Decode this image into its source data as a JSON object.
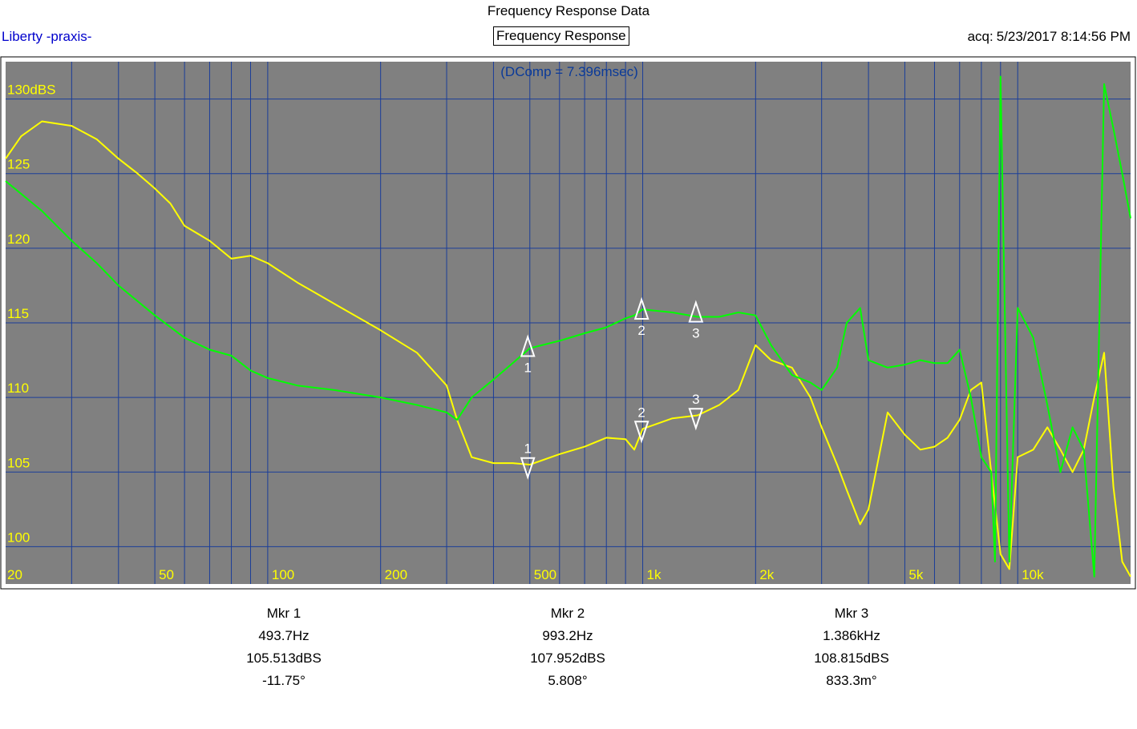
{
  "header": {
    "title": "Frequency Response Data",
    "app_name": "Liberty -praxis-",
    "chart_label": "Frequency Response",
    "acq_label": "acq:",
    "acq_value": "5/23/2017 8:14:56 PM"
  },
  "chart_data": {
    "type": "line",
    "title": "Frequency Response",
    "annotation": "(DComp = 7.396msec)",
    "x_scale": "log",
    "xlim": [
      20,
      20000
    ],
    "x_ticks": [
      {
        "value": 20,
        "label": "20"
      },
      {
        "value": 50,
        "label": "50"
      },
      {
        "value": 100,
        "label": "100"
      },
      {
        "value": 200,
        "label": "200"
      },
      {
        "value": 500,
        "label": "500"
      },
      {
        "value": 1000,
        "label": "1k"
      },
      {
        "value": 2000,
        "label": "2k"
      },
      {
        "value": 5000,
        "label": "5k"
      },
      {
        "value": 10000,
        "label": "10k"
      }
    ],
    "ylim": [
      97.5,
      132.5
    ],
    "y_ticks": [
      {
        "value": 130,
        "label": "130dBS"
      },
      {
        "value": 125,
        "label": "125"
      },
      {
        "value": 120,
        "label": "120"
      },
      {
        "value": 115,
        "label": "115"
      },
      {
        "value": 110,
        "label": "110"
      },
      {
        "value": 105,
        "label": "105"
      },
      {
        "value": 100,
        "label": "100"
      }
    ],
    "grid": true,
    "colors": {
      "background": "#808080",
      "grid": "#1a3d99",
      "magnitude": "#ffff00",
      "phase": "#00ff00",
      "ticks": "#ffff00",
      "annotation": "#0a3a99",
      "marker": "#ffffff"
    },
    "series": [
      {
        "x": [
          20,
          22,
          25,
          30,
          35,
          40,
          45,
          50,
          55,
          60,
          70,
          80,
          90,
          100,
          120,
          150,
          200,
          250,
          300,
          320,
          350,
          400,
          450,
          500,
          600,
          700,
          800,
          900,
          950,
          1000,
          1200,
          1400,
          1600,
          1800,
          2000,
          2200,
          2500,
          2800,
          3000,
          3300,
          3500,
          3800,
          4000,
          4500,
          5000,
          5500,
          6000,
          6500,
          7000,
          7500,
          8000,
          8500,
          9000,
          9500,
          10000,
          11000,
          12000,
          13000,
          14000,
          15000,
          16000,
          17000,
          18000,
          19000,
          20000
        ],
        "y": [
          126.0,
          127.5,
          128.5,
          128.2,
          127.3,
          126.0,
          125.0,
          124.0,
          123.0,
          121.5,
          120.5,
          119.3,
          119.5,
          119.0,
          117.7,
          116.3,
          114.5,
          113.0,
          110.8,
          108.5,
          106.0,
          105.6,
          105.6,
          105.5,
          106.2,
          106.7,
          107.3,
          107.2,
          106.5,
          107.9,
          108.6,
          108.8,
          109.5,
          110.5,
          113.5,
          112.5,
          112.0,
          110.0,
          108.0,
          105.5,
          103.8,
          101.5,
          102.5,
          109.0,
          107.5,
          106.5,
          106.7,
          107.3,
          108.5,
          110.5,
          111.0,
          105.0,
          99.5,
          98.5,
          106.0,
          106.5,
          108.0,
          106.5,
          105.0,
          106.5,
          110.0,
          113.0,
          104.0,
          99.0,
          98.0
        ]
      },
      {
        "x": [
          20,
          25,
          30,
          35,
          40,
          50,
          60,
          70,
          80,
          90,
          100,
          120,
          150,
          200,
          250,
          300,
          320,
          350,
          400,
          450,
          500,
          600,
          700,
          800,
          900,
          950,
          1000,
          1200,
          1400,
          1600,
          1800,
          2000,
          2200,
          2500,
          2800,
          3000,
          3300,
          3500,
          3800,
          4000,
          4500,
          5000,
          5500,
          6000,
          6500,
          7000,
          7500,
          8000,
          8500,
          8700,
          9000,
          9500,
          10000,
          11000,
          12000,
          13000,
          14000,
          15000,
          16000,
          17000,
          18000,
          19000,
          20000
        ],
        "y": [
          124.5,
          122.5,
          120.5,
          119.0,
          117.5,
          115.5,
          114.0,
          113.2,
          112.8,
          111.8,
          111.3,
          110.8,
          110.5,
          110.0,
          109.5,
          109.0,
          108.5,
          110.0,
          111.2,
          112.3,
          113.3,
          113.8,
          114.3,
          114.7,
          115.3,
          115.5,
          115.9,
          115.7,
          115.4,
          115.4,
          115.7,
          115.5,
          113.5,
          111.5,
          111.0,
          110.5,
          112.0,
          115.0,
          116.0,
          112.5,
          112.0,
          112.2,
          112.5,
          112.3,
          112.3,
          113.2,
          110.0,
          106.0,
          105.0,
          99.0,
          131.5,
          99.0,
          116.0,
          114.0,
          109.5,
          105.0,
          108.0,
          106.5,
          98.0,
          131.0,
          128.0,
          125.0,
          122.0
        ]
      }
    ],
    "markers": [
      {
        "label": "1",
        "freq": 493.7,
        "dir": "up",
        "value": 113.2
      },
      {
        "label": "1",
        "freq": 493.7,
        "dir": "down",
        "value": 105.513
      },
      {
        "label": "2",
        "freq": 993.2,
        "dir": "up",
        "value": 115.7
      },
      {
        "label": "2",
        "freq": 993.2,
        "dir": "down",
        "value": 107.952
      },
      {
        "label": "3",
        "freq": 1386,
        "dir": "up",
        "value": 115.5
      },
      {
        "label": "3",
        "freq": 1386,
        "dir": "down",
        "value": 108.815
      }
    ]
  },
  "marker_readouts": [
    {
      "name": "Mkr 1",
      "freq": "493.7Hz",
      "level": "105.513dBS",
      "phase": "-11.75°"
    },
    {
      "name": "Mkr 2",
      "freq": "993.2Hz",
      "level": "107.952dBS",
      "phase": "5.808°"
    },
    {
      "name": "Mkr 3",
      "freq": "1.386kHz",
      "level": "108.815dBS",
      "phase": "833.3m°"
    }
  ]
}
